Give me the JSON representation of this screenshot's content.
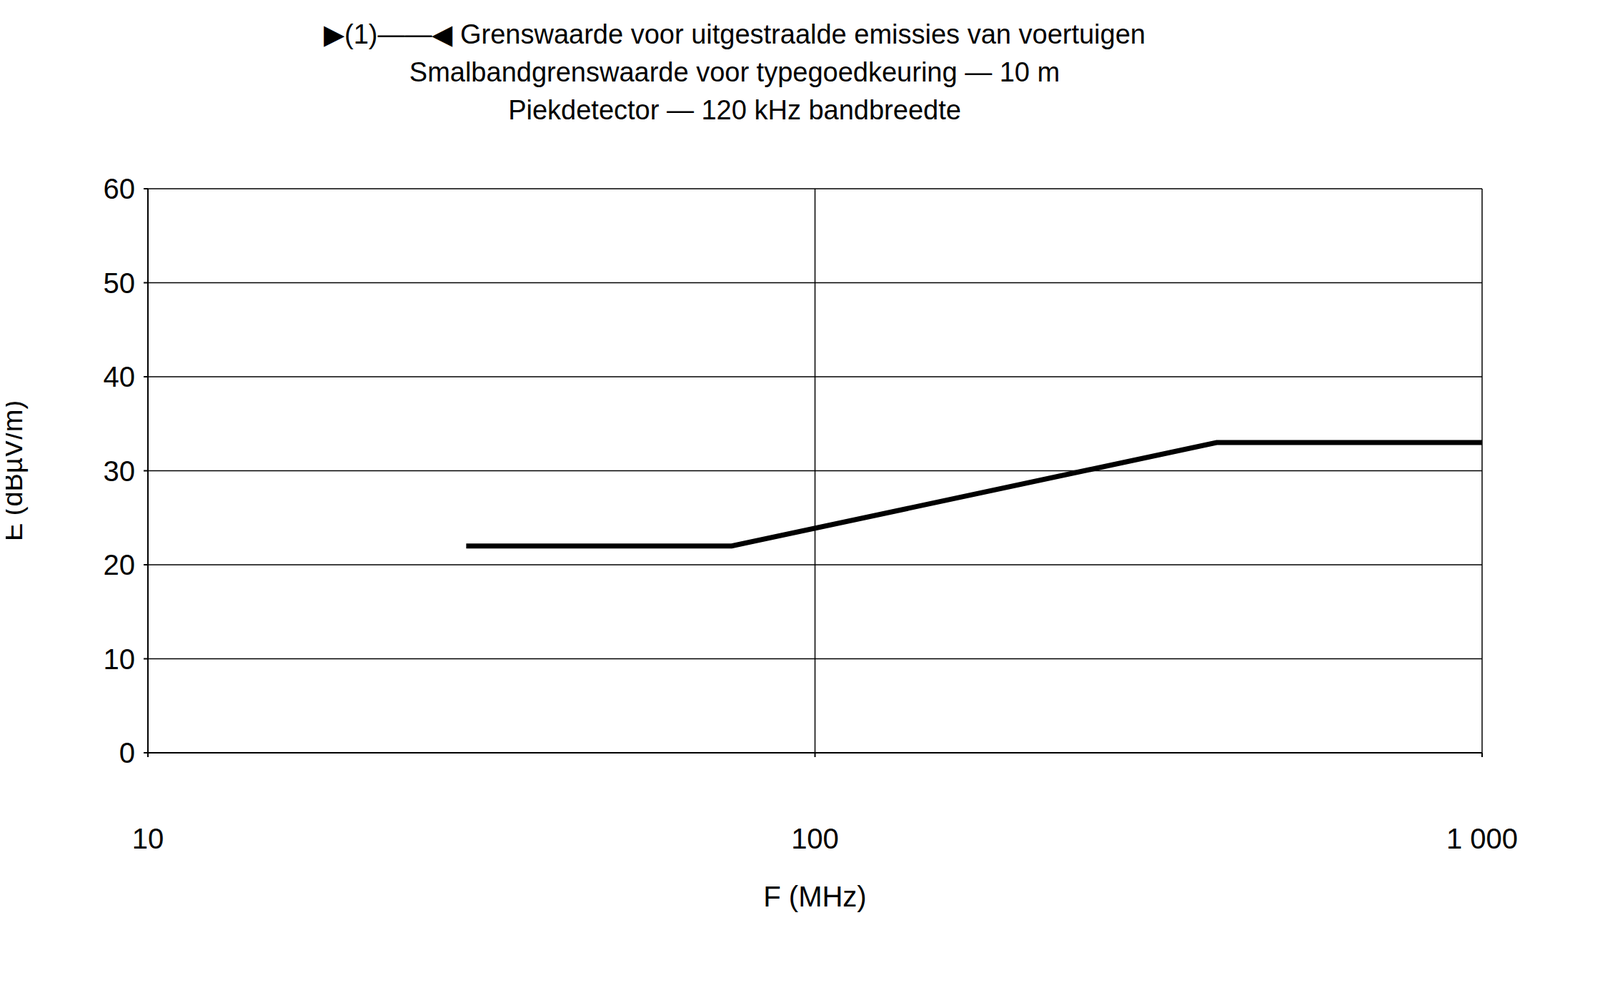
{
  "chart_data": {
    "type": "line",
    "title": "▶(1)——◀ Grenswaarde voor uitgestraalde emissies van voertuigen",
    "subtitle": [
      "Smalbandgrenswaarde voor typegoedkeuring — 10 m",
      "Piekdetector — 120 kHz bandbreedte"
    ],
    "x_label": "F (MHz)",
    "y_label": "E (dBµV/m)",
    "log": "x",
    "grid": true,
    "x": [
      30,
      75,
      400,
      1000
    ],
    "series": [
      {
        "color": "#000000",
        "values": [
          22,
          22,
          33,
          33
        ]
      }
    ],
    "xlim": [
      10,
      1000
    ],
    "xticks": [
      10,
      100,
      {
        "value": 1000,
        "label": "1 000"
      }
    ],
    "ylim": [
      0,
      60
    ],
    "yticks": [
      0,
      10,
      20,
      30,
      40,
      50,
      60
    ]
  }
}
